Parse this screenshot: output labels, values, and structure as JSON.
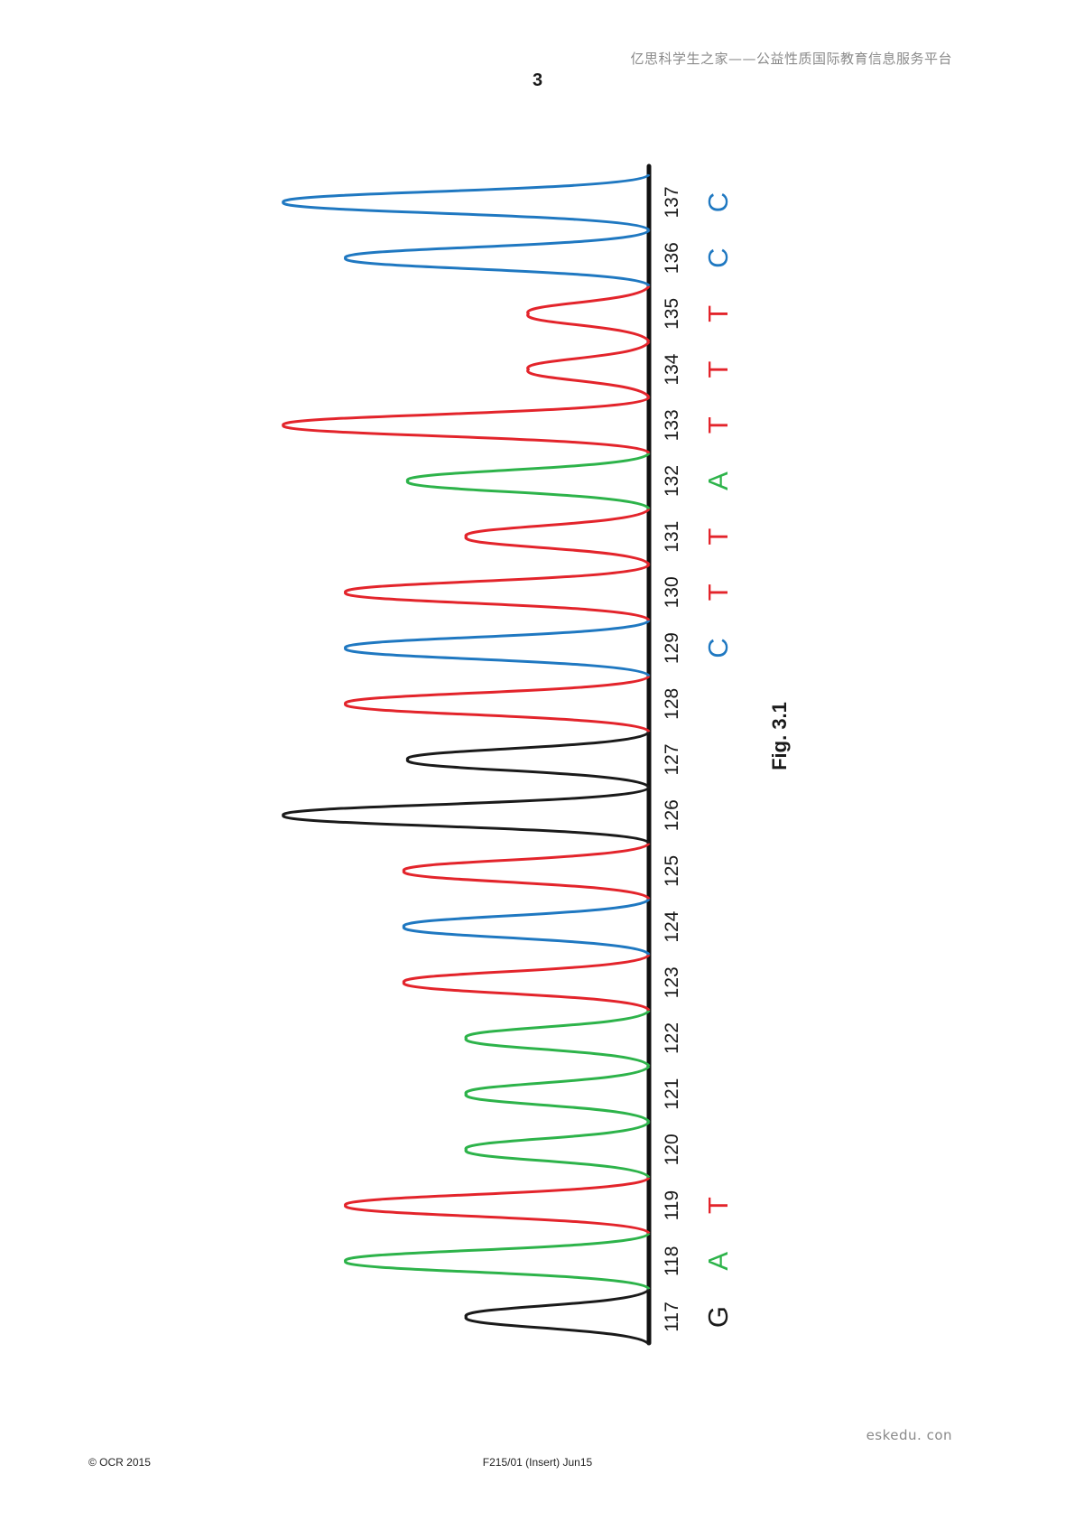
{
  "header": {
    "watermark": "亿思科学生之家——公益性质国际教育信息服务平台",
    "page_number": "3"
  },
  "figure": {
    "caption": "Fig. 3.1"
  },
  "colors": {
    "G": "#1a1a1a",
    "A": "#2db34a",
    "T": "#e3242b",
    "C": "#1f78c1",
    "axis": "#111111"
  },
  "chart_data": {
    "type": "line",
    "positions": [
      117,
      118,
      119,
      120,
      121,
      122,
      123,
      124,
      125,
      126,
      127,
      128,
      129,
      130,
      131,
      132,
      133,
      134,
      135,
      136,
      137
    ],
    "peaks": [
      {
        "pos": 117,
        "base": "G",
        "height": 0.5
      },
      {
        "pos": 118,
        "base": "A",
        "height": 0.83
      },
      {
        "pos": 119,
        "base": "T",
        "height": 0.83
      },
      {
        "pos": 120,
        "base": "A",
        "height": 0.5
      },
      {
        "pos": 121,
        "base": "A",
        "height": 0.5
      },
      {
        "pos": 122,
        "base": "A",
        "height": 0.5
      },
      {
        "pos": 123,
        "base": "T",
        "height": 0.67
      },
      {
        "pos": 124,
        "base": "C",
        "height": 0.67
      },
      {
        "pos": 125,
        "base": "T",
        "height": 0.67
      },
      {
        "pos": 126,
        "base": "G",
        "height": 1.0
      },
      {
        "pos": 127,
        "base": "G",
        "height": 0.66
      },
      {
        "pos": 128,
        "base": "T",
        "height": 0.83
      },
      {
        "pos": 129,
        "base": "C",
        "height": 0.83
      },
      {
        "pos": 130,
        "base": "T",
        "height": 0.83
      },
      {
        "pos": 131,
        "base": "T",
        "height": 0.5
      },
      {
        "pos": 132,
        "base": "A",
        "height": 0.66
      },
      {
        "pos": 133,
        "base": "T",
        "height": 1.0
      },
      {
        "pos": 134,
        "base": "T",
        "height": 0.33
      },
      {
        "pos": 135,
        "base": "T",
        "height": 0.33
      },
      {
        "pos": 136,
        "base": "C",
        "height": 0.83
      },
      {
        "pos": 137,
        "base": "C",
        "height": 1.0
      }
    ],
    "base_calls": [
      {
        "pos": 117,
        "base": "G"
      },
      {
        "pos": 118,
        "base": "A"
      },
      {
        "pos": 119,
        "base": "T"
      },
      {
        "pos": 129,
        "base": "C"
      },
      {
        "pos": 130,
        "base": "T"
      },
      {
        "pos": 131,
        "base": "T"
      },
      {
        "pos": 132,
        "base": "A"
      },
      {
        "pos": 133,
        "base": "T"
      },
      {
        "pos": 134,
        "base": "T"
      },
      {
        "pos": 135,
        "base": "T"
      },
      {
        "pos": 136,
        "base": "C"
      },
      {
        "pos": 137,
        "base": "C"
      }
    ],
    "xlim": [
      117,
      137
    ],
    "grid": false
  },
  "footer": {
    "copyright": "© OCR 2015",
    "code": "F215/01 (Insert) Jun15",
    "site": "eskedu. con"
  }
}
